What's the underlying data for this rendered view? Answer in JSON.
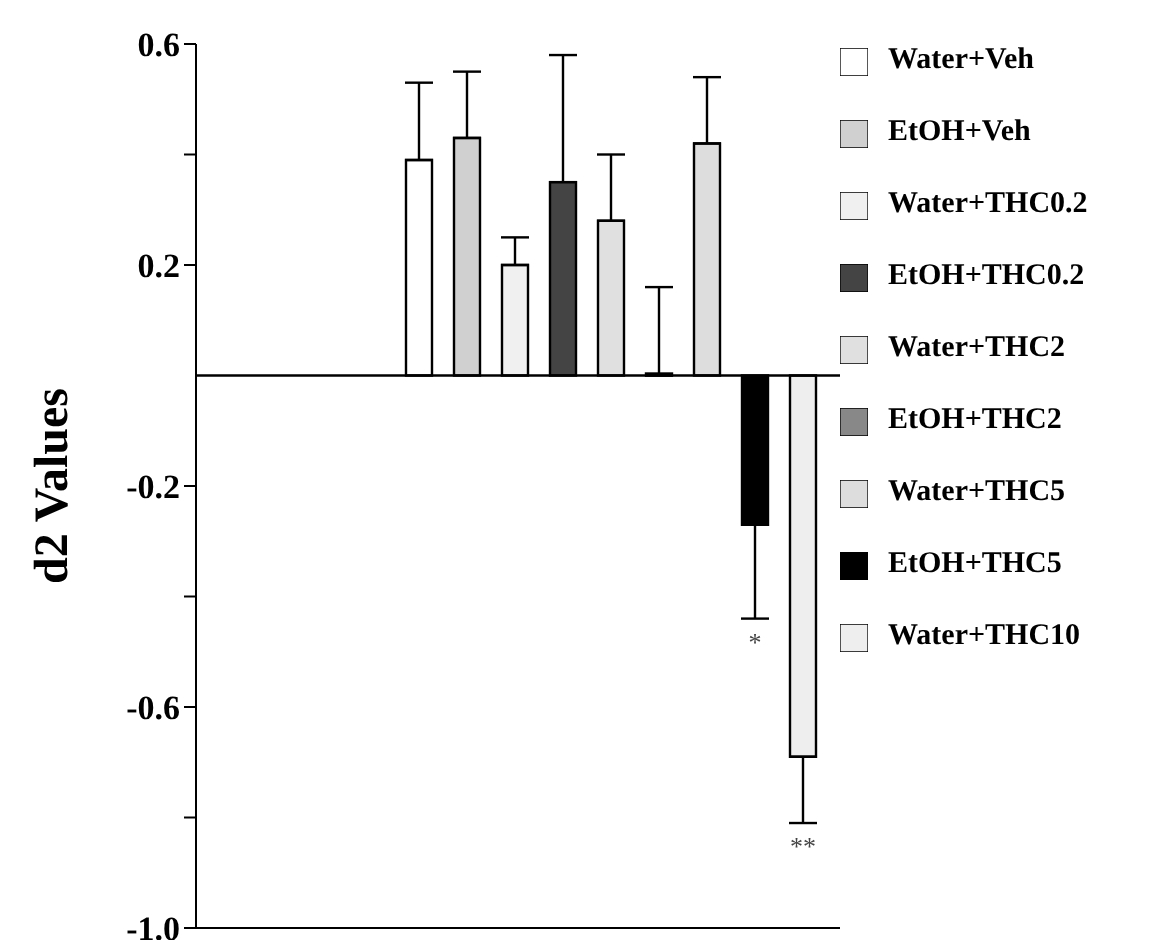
{
  "chart_data": {
    "type": "bar",
    "ylabel": "d2    Values",
    "categories": [
      null
    ],
    "series": [
      {
        "name": "Water+Veh",
        "color": "#ffffff",
        "values": [
          0.39
        ],
        "errors": [
          [
            0.39,
            0.53
          ]
        ]
      },
      {
        "name": "EtOH+Veh",
        "color": "#d0d0d0",
        "values": [
          0.43
        ],
        "errors": [
          [
            0.43,
            0.55
          ]
        ]
      },
      {
        "name": "Water+THC0.2",
        "color": "#f0f0f0",
        "values": [
          0.2
        ],
        "errors": [
          [
            0.2,
            0.25
          ]
        ]
      },
      {
        "name": "EtOH+THC0.2",
        "color": "#444444",
        "values": [
          0.35
        ],
        "errors": [
          [
            0.35,
            0.58
          ]
        ]
      },
      {
        "name": "Water+THC2",
        "color": "#e0e0e0",
        "values": [
          0.28
        ],
        "errors": [
          [
            0.28,
            0.4
          ]
        ]
      },
      {
        "name": "EtOH+THC2",
        "color": "#888888",
        "values": [
          0
        ],
        "errors": [
          [
            0,
            0.16
          ]
        ]
      },
      {
        "name": "Water+THC5",
        "color": "#dddddd",
        "values": [
          0.42
        ],
        "errors": [
          [
            0.42,
            0.54
          ]
        ]
      },
      {
        "name": "EtOH+THC5",
        "color": "#000000",
        "values": [
          -0.27
        ],
        "errors": [
          [
            -0.44,
            -0.27
          ]
        ]
      },
      {
        "name": "Water+THC10",
        "color": "#eeeeee",
        "values": [
          -0.69
        ],
        "errors": [
          [
            -0.81,
            -0.69
          ]
        ]
      }
    ],
    "ylim": [
      -1,
      0.6
    ],
    "yticks": [
      {
        "value": -1,
        "label": "-1.0"
      },
      {
        "value": -0.8,
        "label": null
      },
      -0.6,
      {
        "value": -0.4,
        "label": null
      },
      -0.2,
      0.2,
      {
        "value": 0.4,
        "label": null
      },
      0.6
    ],
    "ref_lines": [
      {
        "axis": "y",
        "value": 0,
        "color": "#000000"
      }
    ],
    "annotations": [
      "*",
      "**"
    ],
    "tick_labels": "y",
    "legend": "right",
    "grid": false
  }
}
